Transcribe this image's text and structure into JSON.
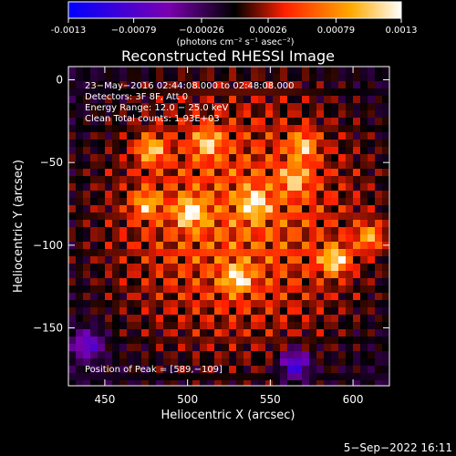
{
  "chart_data": {
    "type": "heatmap",
    "title": "Reconstructed RHESSI Image",
    "xlabel": "Heliocentric X (arcsec)",
    "ylabel": "Heliocentric Y (arcsec)",
    "xlim": [
      428,
      622
    ],
    "ylim": [
      -185,
      8
    ],
    "x_ticks": [
      450,
      500,
      550,
      600
    ],
    "y_ticks": [
      0,
      -50,
      -100,
      -150
    ],
    "colorbar": {
      "ticks": [
        -0.0013,
        -0.00079,
        -0.00026,
        0.00026,
        0.00079,
        0.0013
      ],
      "tick_labels": [
        "-0.0013",
        "−0.00079",
        "−0.00026",
        "0.00026",
        "0.00079",
        "0.0013"
      ],
      "unit_label": "(photons cm⁻² s⁻¹ asec⁻²)",
      "range": [
        -0.0013,
        0.0013
      ],
      "colors": [
        "#0000ff",
        "#7a00b0",
        "#000000",
        "#ff2000",
        "#ffaa00",
        "#ffffff"
      ]
    },
    "annotations": [
      "23−May−2016 02:44:08.000 to 02:48:08.000",
      "Detectors: 3F 8F, Att 0",
      "Energy Range: 12.0 − 25.0 keV",
      "Clean    Total counts: 1.93E+03"
    ],
    "peak_label": "Position of Peak = [589,−109]",
    "peak_position": [
      589,
      -109
    ],
    "peak_value": 0.0013,
    "bright_spots": [
      {
        "x": 589,
        "y": -109,
        "v": 0.0013
      },
      {
        "x": 478,
        "y": -42,
        "v": 0.0011
      },
      {
        "x": 512,
        "y": -38,
        "v": 0.001
      },
      {
        "x": 540,
        "y": -75,
        "v": 0.0011
      },
      {
        "x": 502,
        "y": -80,
        "v": 0.0012
      },
      {
        "x": 565,
        "y": -60,
        "v": 0.0009
      },
      {
        "x": 610,
        "y": -95,
        "v": 0.001
      },
      {
        "x": 530,
        "y": -120,
        "v": 0.0011
      },
      {
        "x": 570,
        "y": -40,
        "v": 0.001
      },
      {
        "x": 475,
        "y": -75,
        "v": 0.0009
      }
    ],
    "dark_spots": [
      {
        "x": 565,
        "y": -172,
        "v": -0.0012
      },
      {
        "x": 440,
        "y": -160,
        "v": -0.0009
      }
    ]
  },
  "footer_date": "5−Sep−2022 16:11"
}
